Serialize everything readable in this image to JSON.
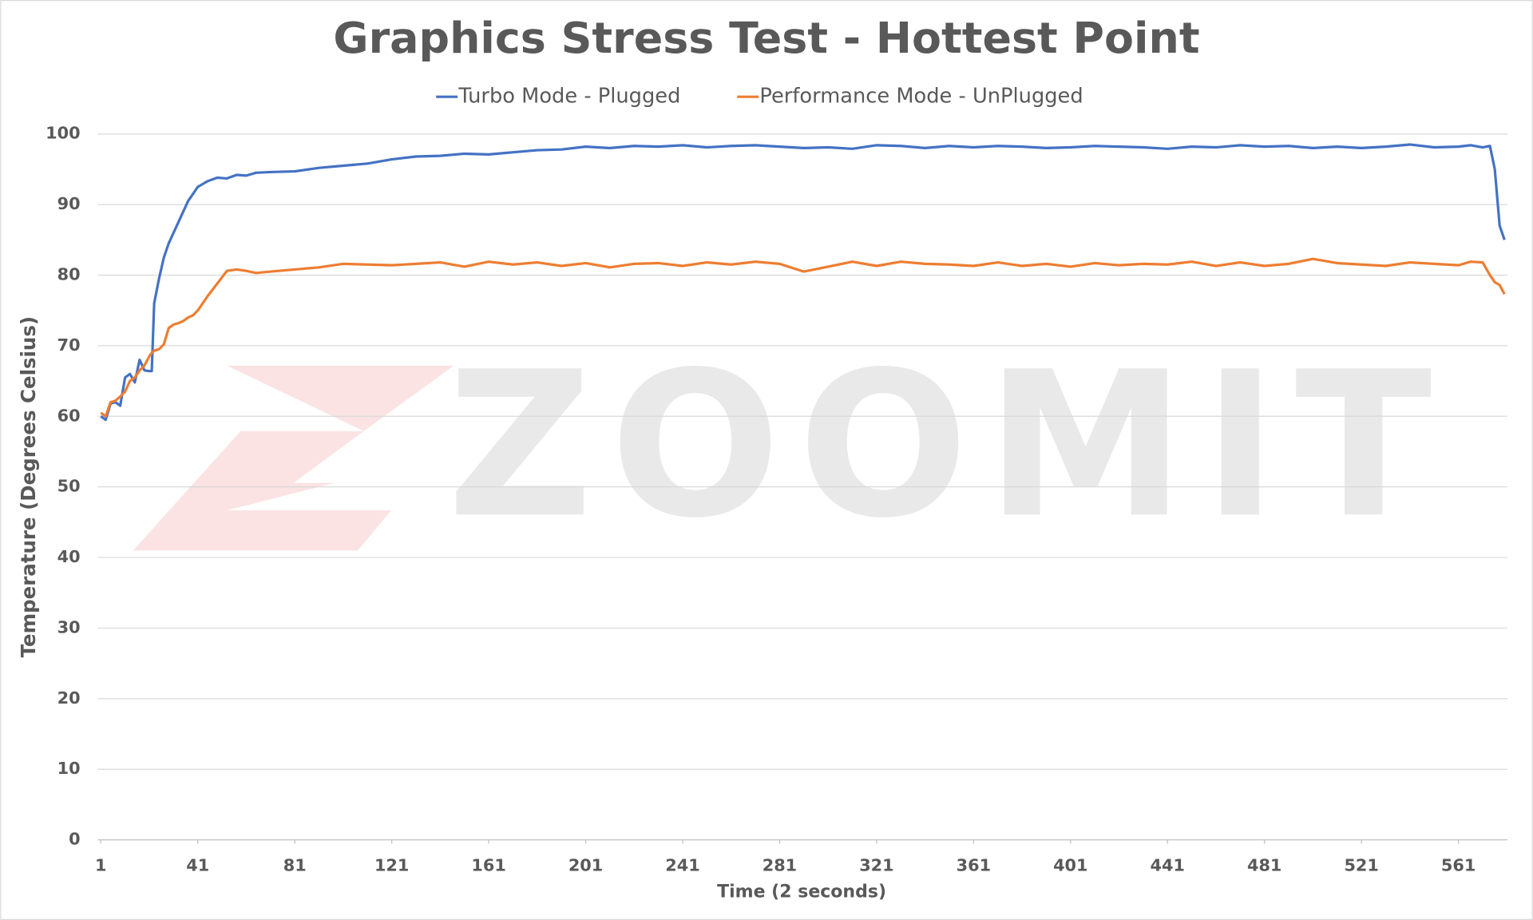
{
  "chart_data": {
    "type": "line",
    "title": "Graphics Stress Test - Hottest Point",
    "x_label": "Time (2 seconds)",
    "y_label": "Temperature (Degrees Celsius)",
    "watermark": "ZOOMIT",
    "legend": "top",
    "grid": true,
    "xlim": [
      1,
      580
    ],
    "xticks": [
      1,
      41,
      81,
      121,
      161,
      201,
      241,
      281,
      321,
      361,
      401,
      441,
      481,
      521,
      561
    ],
    "ylim": [
      0,
      100
    ],
    "yticks": [
      0,
      10,
      20,
      30,
      40,
      50,
      60,
      70,
      80,
      90,
      100
    ],
    "x": [
      1,
      3,
      5,
      7,
      9,
      11,
      13,
      15,
      17,
      19,
      21,
      22,
      23,
      25,
      27,
      29,
      31,
      33,
      35,
      37,
      39,
      41,
      45,
      49,
      53,
      57,
      61,
      65,
      71,
      81,
      91,
      101,
      111,
      121,
      131,
      141,
      151,
      161,
      171,
      181,
      191,
      201,
      211,
      221,
      231,
      241,
      251,
      261,
      271,
      281,
      291,
      301,
      311,
      321,
      331,
      341,
      351,
      361,
      371,
      381,
      391,
      401,
      411,
      421,
      431,
      441,
      451,
      461,
      471,
      481,
      491,
      501,
      511,
      521,
      531,
      541,
      551,
      561,
      566,
      571,
      574,
      576,
      578,
      580
    ],
    "series": [
      {
        "name": "Turbo Mode - Plugged",
        "color": "#4472c4",
        "values": [
          60,
          59.5,
          61.8,
          62,
          61.5,
          65.5,
          66,
          64.8,
          68,
          66.5,
          66.4,
          66.4,
          76,
          79.5,
          82.5,
          84.5,
          86,
          87.5,
          89,
          90.5,
          91.5,
          92.5,
          93.3,
          93.8,
          93.7,
          94.2,
          94.1,
          94.5,
          94.6,
          94.7,
          95.2,
          95.5,
          95.8,
          96.4,
          96.8,
          96.9,
          97.2,
          97.1,
          97.4,
          97.7,
          97.8,
          98.2,
          98,
          98.3,
          98.2,
          98.4,
          98.1,
          98.3,
          98.4,
          98.2,
          98,
          98.1,
          97.9,
          98.4,
          98.3,
          98,
          98.3,
          98.1,
          98.3,
          98.2,
          98,
          98.1,
          98.3,
          98.2,
          98.1,
          97.9,
          98.2,
          98.1,
          98.4,
          98.2,
          98.3,
          98,
          98.2,
          98,
          98.2,
          98.5,
          98.1,
          98.2,
          98.4,
          98.1,
          98.3,
          95,
          87,
          85
        ]
      },
      {
        "name": "Performance Mode - UnPlugged",
        "color": "#ed7d31",
        "values": [
          60.5,
          60,
          62,
          62.2,
          62.8,
          63.5,
          65,
          65.5,
          66.5,
          67.2,
          68.5,
          69,
          69.3,
          69.5,
          70.2,
          72.5,
          73,
          73.2,
          73.5,
          74,
          74.3,
          75,
          77,
          78.8,
          80.6,
          80.8,
          80.6,
          80.3,
          80.5,
          80.8,
          81.1,
          81.6,
          81.5,
          81.4,
          81.6,
          81.8,
          81.2,
          81.9,
          81.5,
          81.8,
          81.3,
          81.7,
          81.1,
          81.6,
          81.7,
          81.3,
          81.8,
          81.5,
          81.9,
          81.6,
          80.5,
          81.2,
          81.9,
          81.3,
          81.9,
          81.6,
          81.5,
          81.3,
          81.8,
          81.3,
          81.6,
          81.2,
          81.7,
          81.4,
          81.6,
          81.5,
          81.9,
          81.3,
          81.8,
          81.3,
          81.6,
          82.3,
          81.7,
          81.5,
          81.3,
          81.8,
          81.6,
          81.4,
          81.9,
          81.8,
          80,
          79,
          78.6,
          77.3
        ]
      }
    ]
  }
}
